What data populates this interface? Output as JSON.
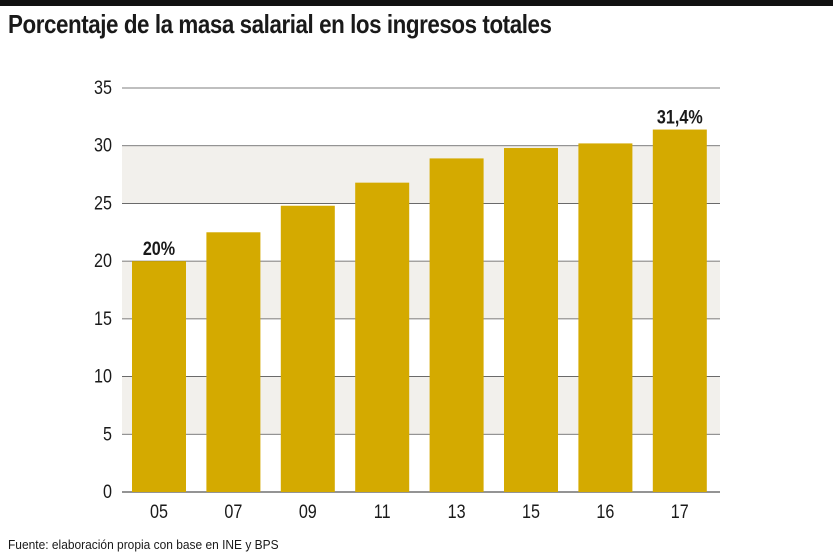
{
  "title": "Porcentaje de la masa salarial en los ingresos totales",
  "source": "Fuente: elaboración propia con base en INE y BPS",
  "colors": {
    "bar": "#d4aa00",
    "band": "#f2f0ec",
    "grid": "#555555",
    "text": "#1a1a1a"
  },
  "chart_data": {
    "type": "bar",
    "title": "Porcentaje de la masa salarial en los ingresos totales",
    "xlabel": "",
    "ylabel": "",
    "categories": [
      "05",
      "07",
      "09",
      "11",
      "13",
      "15",
      "16",
      "17"
    ],
    "values": [
      20,
      22.5,
      24.8,
      26.8,
      28.9,
      29.8,
      30.2,
      31.4
    ],
    "data_labels": [
      {
        "index": 0,
        "text": "20%"
      },
      {
        "index": 7,
        "text": "31,4%"
      }
    ],
    "ylim": [
      0,
      35
    ],
    "yticks": [
      0,
      5,
      10,
      15,
      20,
      25,
      30,
      35
    ],
    "grid": true,
    "legend": "none"
  }
}
